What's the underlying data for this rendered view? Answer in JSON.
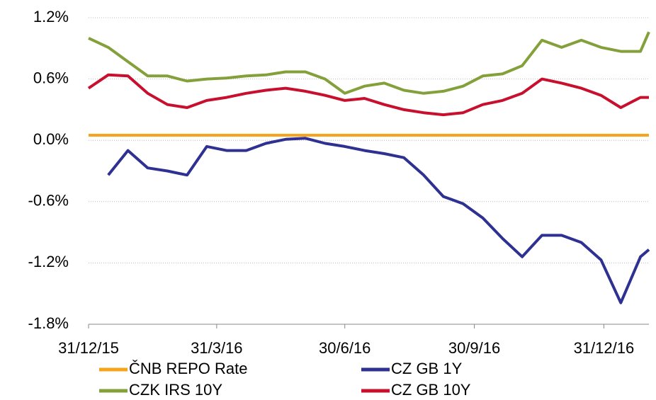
{
  "chart_data": {
    "type": "line",
    "x": [
      "31/12/15",
      "14/1/16",
      "28/1/16",
      "11/2/16",
      "25/2/16",
      "10/3/16",
      "24/3/16",
      "7/4/16",
      "21/4/16",
      "5/5/16",
      "19/5/16",
      "2/6/16",
      "16/6/16",
      "30/6/16",
      "14/7/16",
      "28/7/16",
      "11/8/16",
      "25/8/16",
      "8/9/16",
      "22/9/16",
      "6/10/16",
      "20/10/16",
      "3/11/16",
      "17/11/16",
      "1/12/16",
      "15/12/16",
      "29/12/16",
      "12/1/17",
      "26/1/17",
      "1/2/17"
    ],
    "series": [
      {
        "name": "ČNB REPO Rate",
        "color": "#f7a41d",
        "values": [
          0.05,
          0.05,
          0.05,
          0.05,
          0.05,
          0.05,
          0.05,
          0.05,
          0.05,
          0.05,
          0.05,
          0.05,
          0.05,
          0.05,
          0.05,
          0.05,
          0.05,
          0.05,
          0.05,
          0.05,
          0.05,
          0.05,
          0.05,
          0.05,
          0.05,
          0.05,
          0.05,
          0.05,
          0.05,
          0.05
        ]
      },
      {
        "name": "CZ GB 1Y",
        "color": "#2e3192",
        "values": [
          null,
          -0.34,
          -0.1,
          -0.27,
          -0.3,
          -0.34,
          -0.06,
          -0.1,
          -0.1,
          -0.03,
          0.01,
          0.02,
          -0.03,
          -0.06,
          -0.1,
          -0.13,
          -0.17,
          -0.34,
          -0.55,
          -0.62,
          -0.76,
          -0.96,
          -1.14,
          -0.93,
          -0.93,
          -1.0,
          -1.17,
          -1.59,
          -1.14,
          -1.07
        ]
      },
      {
        "name": "CZK IRS 10Y",
        "color": "#84a03b",
        "values": [
          1.0,
          0.91,
          0.77,
          0.63,
          0.63,
          0.58,
          0.6,
          0.61,
          0.63,
          0.64,
          0.67,
          0.67,
          0.6,
          0.46,
          0.53,
          0.56,
          0.49,
          0.46,
          0.48,
          0.53,
          0.63,
          0.65,
          0.73,
          0.98,
          0.91,
          0.98,
          0.91,
          0.87,
          0.87,
          1.06
        ]
      },
      {
        "name": "CZ GB 10Y",
        "color": "#c8102e",
        "values": [
          0.51,
          0.64,
          0.63,
          0.46,
          0.35,
          0.32,
          0.39,
          0.42,
          0.46,
          0.49,
          0.51,
          0.48,
          0.44,
          0.39,
          0.41,
          0.35,
          0.3,
          0.27,
          0.25,
          0.27,
          0.35,
          0.39,
          0.46,
          0.6,
          0.56,
          0.51,
          0.44,
          0.32,
          0.42,
          0.42
        ]
      }
    ],
    "xlim": [
      "31/12/15",
      "1/2/17"
    ],
    "xticks": [
      "31/12/15",
      "31/3/16",
      "30/6/16",
      "30/9/16",
      "31/12/16"
    ],
    "ylim": [
      -1.8,
      1.2
    ],
    "yticks": [
      {
        "value": -1.8,
        "label": "-1.8%"
      },
      {
        "value": -1.2,
        "label": "-1.2%"
      },
      {
        "value": -0.6,
        "label": "-0.6%"
      },
      {
        "value": 0,
        "label": "0.0%"
      },
      {
        "value": 0.6,
        "label": "0.6%"
      },
      {
        "value": 1.2,
        "label": "1.2%"
      }
    ],
    "grid": true
  }
}
